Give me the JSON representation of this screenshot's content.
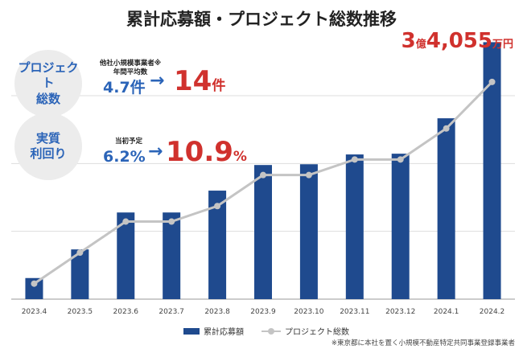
{
  "title": "累計応募額・プロジェクト総数推移",
  "total": {
    "number": "3",
    "oku": "億",
    "rest": "4,055",
    "unit": "万円"
  },
  "project_box": {
    "label": "プロジェクト\n総数",
    "avg_label": "他社小規模事業者※\n年間平均数",
    "avg_value": "4.7件",
    "arrow": "→",
    "value": "14",
    "unit": "件"
  },
  "yield_box": {
    "label": "実質\n利回り",
    "avg_label": "当初予定",
    "avg_value": "6.2%",
    "arrow": "→",
    "value": "10.9",
    "unit": "%"
  },
  "legend": {
    "bar": "累計応募額",
    "line": "プロジェクト総数"
  },
  "footnote": "※東京都に本社を置く小規模不動産特定共同事業登録事業者",
  "chart_data": {
    "type": "bar",
    "categories": [
      "2023.4",
      "2023.5",
      "2023.6",
      "2023.7",
      "2023.8",
      "2023.9",
      "2023.10",
      "2023.11",
      "2023.12",
      "2024.1",
      "2024.2"
    ],
    "series": [
      {
        "name": "累計応募額",
        "type": "bar",
        "values": [
          2.8,
          6.6,
          11.5,
          11.5,
          14.4,
          17.8,
          17.9,
          19.2,
          19.3,
          24.0,
          34.1
        ]
      },
      {
        "name": "プロジェクト総数",
        "type": "line",
        "values": [
          1,
          3,
          5,
          5,
          6,
          8,
          8,
          9,
          9,
          11,
          14
        ]
      }
    ],
    "ylim": [
      0,
      35
    ],
    "line_ylim": [
      0,
      17
    ],
    "grid": true,
    "colors": {
      "bar": "#1f4a8e",
      "line": "#c4c4c4",
      "highlight": "#d0312d",
      "accent": "#2b64b8"
    }
  }
}
